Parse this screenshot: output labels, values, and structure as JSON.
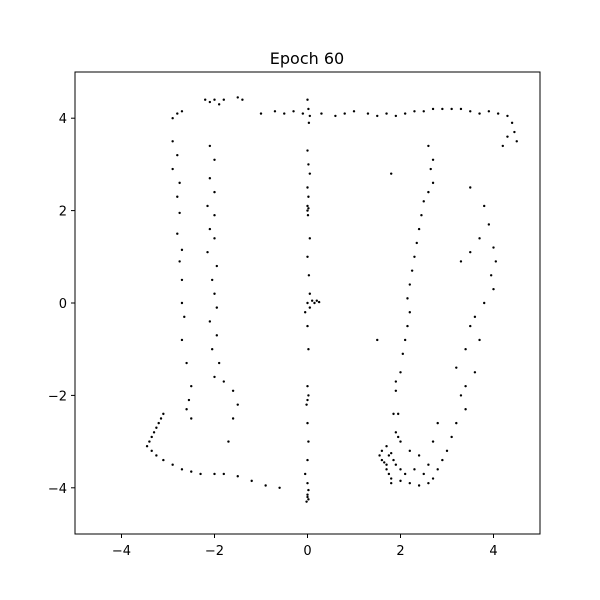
{
  "chart_data": {
    "type": "scatter",
    "title": "Epoch 60",
    "xlabel": "",
    "ylabel": "",
    "xlim": [
      -5,
      5
    ],
    "ylim": [
      -5,
      5
    ],
    "xticks": [
      -4,
      -2,
      0,
      2,
      4
    ],
    "yticks": [
      -4,
      -2,
      0,
      2,
      4
    ],
    "xtick_labels": [
      "−4",
      "−2",
      "0",
      "2",
      "4"
    ],
    "ytick_labels": [
      "−4",
      "−2",
      "0",
      "2",
      "4"
    ],
    "grid": false,
    "legend": "none",
    "marker_color": "#000000",
    "series": [
      {
        "points": [
          [
            -2.9,
            4.0
          ],
          [
            -2.8,
            4.1
          ],
          [
            -2.7,
            4.15
          ],
          [
            -2.2,
            4.4
          ],
          [
            -2.1,
            4.35
          ],
          [
            -2.0,
            4.4
          ],
          [
            -1.9,
            4.3
          ],
          [
            -1.8,
            4.4
          ],
          [
            -1.5,
            4.45
          ],
          [
            -1.4,
            4.4
          ],
          [
            -1.0,
            4.1
          ],
          [
            -0.7,
            4.15
          ],
          [
            -0.5,
            4.1
          ],
          [
            -0.3,
            4.15
          ],
          [
            -0.1,
            4.1
          ],
          [
            0.3,
            4.1
          ],
          [
            0.6,
            4.05
          ],
          [
            0.8,
            4.1
          ],
          [
            1.0,
            4.15
          ],
          [
            1.3,
            4.1
          ],
          [
            1.5,
            4.05
          ],
          [
            1.7,
            4.1
          ],
          [
            1.9,
            4.05
          ],
          [
            2.1,
            4.1
          ],
          [
            2.3,
            4.15
          ],
          [
            2.5,
            4.15
          ],
          [
            2.7,
            4.2
          ],
          [
            2.9,
            4.2
          ],
          [
            3.1,
            4.2
          ],
          [
            3.3,
            4.2
          ],
          [
            3.5,
            4.15
          ],
          [
            3.7,
            4.1
          ],
          [
            3.9,
            4.15
          ],
          [
            4.1,
            4.1
          ],
          [
            4.3,
            4.05
          ],
          [
            4.4,
            3.9
          ],
          [
            4.45,
            3.7
          ],
          [
            4.5,
            3.5
          ],
          [
            4.3,
            3.6
          ],
          [
            4.2,
            3.4
          ],
          [
            -2.9,
            3.5
          ],
          [
            -2.8,
            3.2
          ],
          [
            -2.9,
            2.9
          ],
          [
            -2.75,
            2.6
          ],
          [
            -2.8,
            2.3
          ],
          [
            -2.75,
            1.95
          ],
          [
            -2.8,
            1.5
          ],
          [
            -2.7,
            1.15
          ],
          [
            -2.75,
            0.9
          ],
          [
            -2.7,
            0.5
          ],
          [
            -2.7,
            0.0
          ],
          [
            -2.65,
            -0.3
          ],
          [
            -2.7,
            -0.8
          ],
          [
            -2.6,
            -1.3
          ],
          [
            -2.5,
            -1.8
          ],
          [
            -2.55,
            -2.1
          ],
          [
            -2.6,
            -2.3
          ],
          [
            -2.5,
            -2.5
          ],
          [
            -2.1,
            3.4
          ],
          [
            -2.0,
            3.1
          ],
          [
            -2.1,
            2.7
          ],
          [
            -2.0,
            2.4
          ],
          [
            -2.15,
            2.1
          ],
          [
            -2.0,
            1.9
          ],
          [
            -2.1,
            1.6
          ],
          [
            -2.0,
            1.4
          ],
          [
            -2.15,
            1.1
          ],
          [
            -1.95,
            0.8
          ],
          [
            -2.05,
            0.5
          ],
          [
            -2.0,
            0.2
          ],
          [
            -1.95,
            -0.1
          ],
          [
            -2.1,
            -0.4
          ],
          [
            -1.95,
            -0.7
          ],
          [
            -2.05,
            -1.0
          ],
          [
            -1.9,
            -1.3
          ],
          [
            -2.0,
            -1.6
          ],
          [
            -1.8,
            -1.7
          ],
          [
            -1.6,
            -1.9
          ],
          [
            -1.5,
            -2.2
          ],
          [
            -1.6,
            -2.5
          ],
          [
            -1.7,
            -3.0
          ],
          [
            -1.8,
            -3.7
          ],
          [
            -3.4,
            -3.0
          ],
          [
            -3.35,
            -2.9
          ],
          [
            -3.3,
            -2.8
          ],
          [
            -3.25,
            -2.7
          ],
          [
            -3.2,
            -2.6
          ],
          [
            -3.15,
            -2.5
          ],
          [
            -3.1,
            -2.4
          ],
          [
            -3.45,
            -3.1
          ],
          [
            -3.35,
            -3.2
          ],
          [
            -3.25,
            -3.3
          ],
          [
            -3.1,
            -3.4
          ],
          [
            -2.9,
            -3.5
          ],
          [
            -2.7,
            -3.6
          ],
          [
            -2.5,
            -3.65
          ],
          [
            -2.3,
            -3.7
          ],
          [
            -2.0,
            -3.7
          ],
          [
            -1.5,
            -3.75
          ],
          [
            -1.2,
            -3.85
          ],
          [
            -0.9,
            -3.95
          ],
          [
            -0.6,
            -4.0
          ],
          [
            0.0,
            4.4
          ],
          [
            0.02,
            4.2
          ],
          [
            0.05,
            4.05
          ],
          [
            0.03,
            3.9
          ],
          [
            0.0,
            3.3
          ],
          [
            0.02,
            3.0
          ],
          [
            0.05,
            2.8
          ],
          [
            0.0,
            2.5
          ],
          [
            0.02,
            2.3
          ],
          [
            0.0,
            2.1
          ],
          [
            0.02,
            2.05
          ],
          [
            0.0,
            2.0
          ],
          [
            0.01,
            1.9
          ],
          [
            0.05,
            1.4
          ],
          [
            0.0,
            1.0
          ],
          [
            0.03,
            0.6
          ],
          [
            0.05,
            0.2
          ],
          [
            0.1,
            0.05
          ],
          [
            0.15,
            0.0
          ],
          [
            0.2,
            0.05
          ],
          [
            0.25,
            0.02
          ],
          [
            0.0,
            0.0
          ],
          [
            0.05,
            -0.1
          ],
          [
            -0.05,
            -0.2
          ],
          [
            0.0,
            -0.5
          ],
          [
            0.02,
            -1.0
          ],
          [
            0.0,
            -1.8
          ],
          [
            0.02,
            -2.0
          ],
          [
            0.0,
            -2.1
          ],
          [
            -0.02,
            -2.2
          ],
          [
            0.0,
            -2.6
          ],
          [
            0.02,
            -3.0
          ],
          [
            0.0,
            -3.4
          ],
          [
            -0.05,
            -3.7
          ],
          [
            0.0,
            -3.9
          ],
          [
            0.02,
            -4.05
          ],
          [
            0.0,
            -4.15
          ],
          [
            0.02,
            -4.25
          ],
          [
            -0.02,
            -4.3
          ],
          [
            0.0,
            -4.2
          ],
          [
            2.6,
            3.4
          ],
          [
            2.7,
            3.1
          ],
          [
            2.65,
            2.9
          ],
          [
            2.7,
            2.6
          ],
          [
            2.6,
            2.4
          ],
          [
            2.5,
            2.2
          ],
          [
            2.45,
            1.9
          ],
          [
            2.4,
            1.6
          ],
          [
            2.35,
            1.3
          ],
          [
            2.3,
            1.0
          ],
          [
            2.25,
            0.7
          ],
          [
            2.2,
            0.4
          ],
          [
            2.15,
            0.1
          ],
          [
            2.2,
            -0.2
          ],
          [
            2.15,
            -0.5
          ],
          [
            2.1,
            -0.8
          ],
          [
            2.05,
            -1.1
          ],
          [
            2.0,
            -1.5
          ],
          [
            1.9,
            -1.7
          ],
          [
            1.9,
            -1.9
          ],
          [
            1.85,
            -2.4
          ],
          [
            1.95,
            -2.4
          ],
          [
            1.5,
            -0.8
          ],
          [
            1.8,
            2.8
          ],
          [
            3.5,
            2.5
          ],
          [
            3.8,
            2.1
          ],
          [
            3.9,
            1.7
          ],
          [
            3.7,
            1.4
          ],
          [
            3.5,
            1.1
          ],
          [
            3.3,
            0.9
          ],
          [
            4.0,
            1.2
          ],
          [
            4.05,
            0.9
          ],
          [
            3.95,
            0.6
          ],
          [
            4.0,
            0.3
          ],
          [
            3.8,
            0.0
          ],
          [
            3.6,
            -0.3
          ],
          [
            3.5,
            -0.5
          ],
          [
            3.7,
            -0.8
          ],
          [
            3.4,
            -1.0
          ],
          [
            3.2,
            -1.4
          ],
          [
            3.6,
            -1.5
          ],
          [
            3.4,
            -1.8
          ],
          [
            3.3,
            -2.0
          ],
          [
            3.4,
            -2.3
          ],
          [
            3.2,
            -2.6
          ],
          [
            3.1,
            -2.9
          ],
          [
            3.0,
            -3.2
          ],
          [
            2.9,
            -3.4
          ],
          [
            2.8,
            -3.6
          ],
          [
            2.7,
            -3.8
          ],
          [
            2.6,
            -3.9
          ],
          [
            2.4,
            -3.95
          ],
          [
            2.2,
            -3.9
          ],
          [
            2.0,
            -3.85
          ],
          [
            1.8,
            -3.8
          ],
          [
            1.7,
            -3.6
          ],
          [
            1.6,
            -3.4
          ],
          [
            1.55,
            -3.3
          ],
          [
            1.6,
            -3.2
          ],
          [
            1.7,
            -3.5
          ],
          [
            1.65,
            -3.45
          ],
          [
            1.75,
            -3.3
          ],
          [
            1.8,
            -3.25
          ],
          [
            1.85,
            -3.4
          ],
          [
            1.7,
            -3.1
          ],
          [
            1.9,
            -3.5
          ],
          [
            2.0,
            -3.6
          ],
          [
            2.1,
            -3.7
          ],
          [
            1.75,
            -3.7
          ],
          [
            1.8,
            -3.9
          ],
          [
            2.3,
            -3.6
          ],
          [
            2.5,
            -3.7
          ],
          [
            2.6,
            -3.5
          ],
          [
            2.4,
            -3.3
          ],
          [
            2.2,
            -3.2
          ],
          [
            2.0,
            -3.0
          ],
          [
            1.95,
            -2.9
          ],
          [
            1.9,
            -2.8
          ],
          [
            2.7,
            -3.0
          ],
          [
            2.8,
            -2.6
          ]
        ]
      }
    ]
  }
}
